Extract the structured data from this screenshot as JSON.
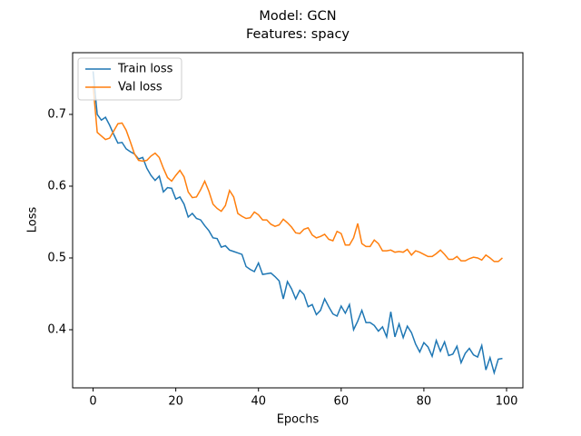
{
  "chart_data": {
    "type": "line",
    "title": [
      "Model: GCN",
      "Features: spacy"
    ],
    "x_label": "Epochs",
    "y_label": "Loss",
    "x": [
      0,
      1,
      2,
      3,
      4,
      5,
      6,
      7,
      8,
      9,
      10,
      11,
      12,
      13,
      14,
      15,
      16,
      17,
      18,
      19,
      20,
      21,
      22,
      23,
      24,
      25,
      26,
      27,
      28,
      29,
      30,
      31,
      32,
      33,
      34,
      35,
      36,
      37,
      38,
      39,
      40,
      41,
      42,
      43,
      44,
      45,
      46,
      47,
      48,
      49,
      50,
      51,
      52,
      53,
      54,
      55,
      56,
      57,
      58,
      59,
      60,
      61,
      62,
      63,
      64,
      65,
      66,
      67,
      68,
      69,
      70,
      71,
      72,
      73,
      74,
      75,
      76,
      77,
      78,
      79,
      80,
      81,
      82,
      83,
      84,
      85,
      86,
      87,
      88,
      89,
      90,
      91,
      92,
      93,
      94,
      95,
      96,
      97,
      98,
      99
    ],
    "series": [
      {
        "name": "Train loss",
        "color": "#1f77b4",
        "values": [
          0.76,
          0.7,
          0.692,
          0.696,
          0.685,
          0.672,
          0.66,
          0.661,
          0.652,
          0.648,
          0.645,
          0.638,
          0.64,
          0.625,
          0.615,
          0.608,
          0.614,
          0.592,
          0.598,
          0.597,
          0.582,
          0.585,
          0.575,
          0.557,
          0.562,
          0.555,
          0.553,
          0.545,
          0.538,
          0.528,
          0.527,
          0.515,
          0.517,
          0.511,
          0.509,
          0.507,
          0.505,
          0.488,
          0.484,
          0.481,
          0.493,
          0.477,
          0.478,
          0.479,
          0.474,
          0.468,
          0.443,
          0.467,
          0.457,
          0.443,
          0.455,
          0.449,
          0.432,
          0.435,
          0.421,
          0.427,
          0.443,
          0.432,
          0.422,
          0.419,
          0.433,
          0.423,
          0.435,
          0.4,
          0.412,
          0.427,
          0.41,
          0.41,
          0.406,
          0.398,
          0.404,
          0.39,
          0.425,
          0.39,
          0.408,
          0.389,
          0.405,
          0.396,
          0.38,
          0.369,
          0.382,
          0.376,
          0.363,
          0.385,
          0.37,
          0.383,
          0.364,
          0.366,
          0.377,
          0.354,
          0.367,
          0.374,
          0.365,
          0.362,
          0.378,
          0.344,
          0.361,
          0.34,
          0.359,
          0.36
        ]
      },
      {
        "name": "Val loss",
        "color": "#ff7f0e",
        "values": [
          0.74,
          0.675,
          0.67,
          0.665,
          0.667,
          0.677,
          0.687,
          0.688,
          0.678,
          0.662,
          0.645,
          0.636,
          0.635,
          0.636,
          0.642,
          0.646,
          0.64,
          0.625,
          0.612,
          0.607,
          0.615,
          0.622,
          0.613,
          0.592,
          0.584,
          0.585,
          0.595,
          0.607,
          0.593,
          0.575,
          0.569,
          0.565,
          0.573,
          0.594,
          0.585,
          0.562,
          0.558,
          0.555,
          0.556,
          0.564,
          0.56,
          0.553,
          0.553,
          0.547,
          0.544,
          0.546,
          0.554,
          0.549,
          0.543,
          0.535,
          0.534,
          0.54,
          0.542,
          0.532,
          0.528,
          0.53,
          0.533,
          0.526,
          0.524,
          0.537,
          0.534,
          0.518,
          0.518,
          0.528,
          0.548,
          0.52,
          0.516,
          0.516,
          0.525,
          0.52,
          0.51,
          0.51,
          0.511,
          0.508,
          0.509,
          0.508,
          0.512,
          0.504,
          0.51,
          0.508,
          0.505,
          0.502,
          0.502,
          0.506,
          0.511,
          0.505,
          0.498,
          0.498,
          0.502,
          0.496,
          0.496,
          0.499,
          0.501,
          0.5,
          0.497,
          0.504,
          0.5,
          0.495,
          0.495,
          0.5
        ]
      }
    ],
    "xlim": [
      -4.95,
      103.95
    ],
    "ylim": [
      0.319,
      0.786
    ],
    "xticks": [
      0,
      20,
      40,
      60,
      80,
      100
    ],
    "yticks": [
      0.4,
      0.5,
      0.6,
      0.7
    ],
    "legend": "upper left"
  }
}
